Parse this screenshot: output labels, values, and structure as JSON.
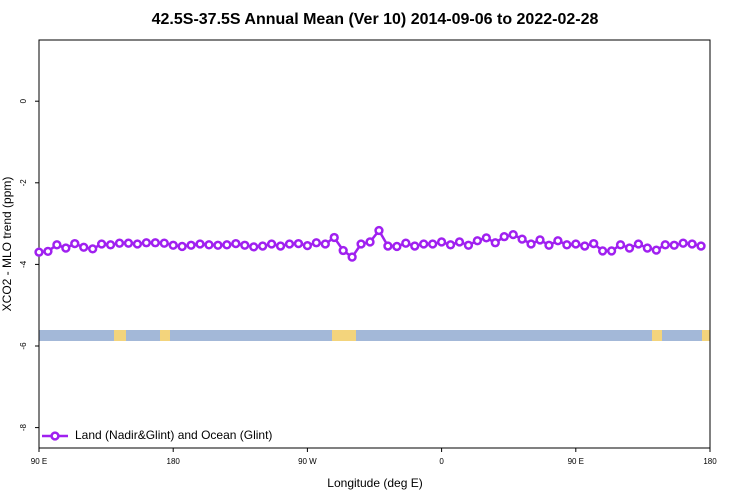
{
  "chart_data": {
    "type": "line",
    "title": "42.5S-37.5S Annual Mean (Ver 10)   2014-09-06 to 2022-02-28",
    "x_label": "Longitude (deg E)",
    "y_label": "XCO2 - MLO trend (ppm)",
    "xlim": [
      90,
      540
    ],
    "ylim": [
      -8.5,
      1.5
    ],
    "xticks": [
      {
        "value": 90,
        "label": "90 E"
      },
      180,
      {
        "value": 270,
        "label": "90 W"
      },
      {
        "value": 360,
        "label": "0"
      },
      {
        "value": 450,
        "label": "90 E"
      },
      {
        "value": 540,
        "label": "180"
      }
    ],
    "yticks": [
      0,
      -2,
      -4,
      -6,
      -8
    ],
    "legend": "bottom-left",
    "x": [
      90,
      96,
      102,
      108,
      114,
      120,
      126,
      132,
      138,
      144,
      150,
      156,
      162,
      168,
      174,
      180,
      186,
      192,
      198,
      204,
      210,
      216,
      222,
      228,
      234,
      240,
      246,
      252,
      258,
      264,
      270,
      276,
      282,
      288,
      294,
      300,
      306,
      312,
      318,
      324,
      330,
      336,
      342,
      348,
      354,
      360,
      366,
      372,
      378,
      384,
      390,
      396,
      402,
      408,
      414,
      420,
      426,
      432,
      438,
      444,
      450,
      456,
      462,
      468,
      474,
      480,
      486,
      492,
      498,
      504,
      510,
      516,
      522,
      528,
      534
    ],
    "series": [
      {
        "name": "Land (Nadir&Glint) and Ocean (Glint)",
        "color": "#a020f0",
        "values": [
          -3.7,
          -3.68,
          -3.52,
          -3.6,
          -3.49,
          -3.58,
          -3.62,
          -3.5,
          -3.52,
          -3.48,
          -3.48,
          -3.5,
          -3.47,
          -3.47,
          -3.48,
          -3.53,
          -3.56,
          -3.53,
          -3.5,
          -3.52,
          -3.53,
          -3.52,
          -3.49,
          -3.53,
          -3.57,
          -3.55,
          -3.5,
          -3.55,
          -3.5,
          -3.49,
          -3.54,
          -3.47,
          -3.5,
          -3.34,
          -3.66,
          -3.82,
          -3.5,
          -3.45,
          -3.17,
          -3.55,
          -3.56,
          -3.48,
          -3.55,
          -3.5,
          -3.5,
          -3.45,
          -3.52,
          -3.45,
          -3.53,
          -3.42,
          -3.35,
          -3.47,
          -3.32,
          -3.27,
          -3.38,
          -3.5,
          -3.4,
          -3.53,
          -3.42,
          -3.52,
          -3.5,
          -3.55,
          -3.49,
          -3.67,
          -3.67,
          -3.52,
          -3.6,
          -3.5,
          -3.6,
          -3.65,
          -3.52,
          -3.53,
          -3.48,
          -3.5,
          -3.55
        ]
      }
    ]
  }
}
